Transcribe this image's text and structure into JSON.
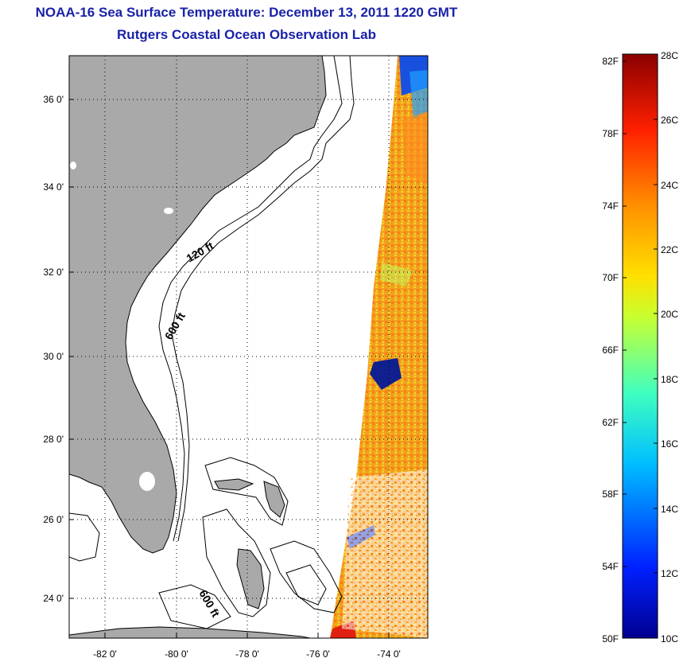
{
  "title": {
    "line1": "NOAA-16 Sea Surface Temperature:  December 13, 2011 1220 GMT",
    "line2": "Rutgers Coastal Ocean Observation Lab"
  },
  "map": {
    "lat_ticks": [
      "36 0'",
      "34 0'",
      "32 0'",
      "30 0'",
      "28 0'",
      "26 0'",
      "24 0'"
    ],
    "lon_ticks": [
      "-82 0'",
      "-80 0'",
      "-78 0'",
      "-76 0'",
      "-74 0'"
    ],
    "contour_labels": [
      "120 ft",
      "600 ft",
      "600 ft"
    ],
    "colors": {
      "land": "#a9a9a9",
      "water": "#ffffff"
    }
  },
  "colorbar": {
    "fahrenheit_labels": [
      "82F",
      "78F",
      "74F",
      "70F",
      "66F",
      "62F",
      "58F",
      "54F",
      "50F"
    ],
    "celsius_labels": [
      "28C",
      "26C",
      "24C",
      "22C",
      "20C",
      "18C",
      "16C",
      "14C",
      "12C",
      "10C"
    ],
    "range_c": [
      10,
      28
    ],
    "colormap": [
      "#00008f",
      "#0040ff",
      "#00bfff",
      "#40ffbf",
      "#bfff40",
      "#ffbf00",
      "#ff4000",
      "#8f0000"
    ]
  }
}
